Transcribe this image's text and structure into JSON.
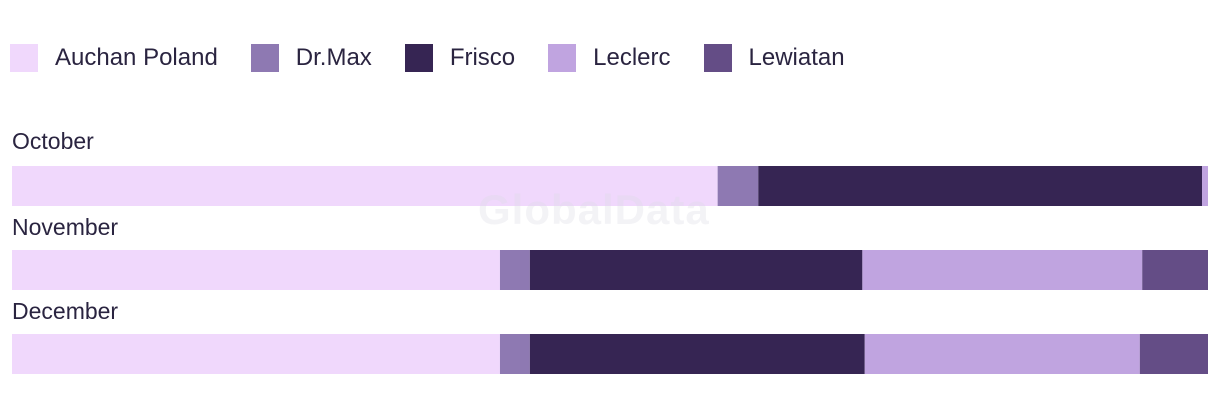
{
  "chart_data": {
    "type": "bar",
    "orientation": "horizontal",
    "stacked": true,
    "normalized": true,
    "categories": [
      "October",
      "November",
      "December"
    ],
    "series": [
      {
        "name": "Auchan Poland",
        "color": "#f0d8fc",
        "values": [
          59.0,
          40.8,
          40.8
        ]
      },
      {
        "name": "Dr.Max",
        "color": "#8e79b2",
        "values": [
          3.4,
          2.5,
          2.5
        ]
      },
      {
        "name": "Frisco",
        "color": "#362553",
        "values": [
          37.1,
          27.8,
          28.0
        ]
      },
      {
        "name": "Leclerc",
        "color": "#c0a4e0",
        "values": [
          0.5,
          23.4,
          23.0
        ]
      },
      {
        "name": "Lewiatan",
        "color": "#644d86",
        "values": [
          0.0,
          5.5,
          5.7
        ]
      }
    ],
    "legend_position": "top-left",
    "grid": false,
    "title": "",
    "xlabel": "",
    "ylabel": ""
  },
  "watermark": "GlobalData"
}
